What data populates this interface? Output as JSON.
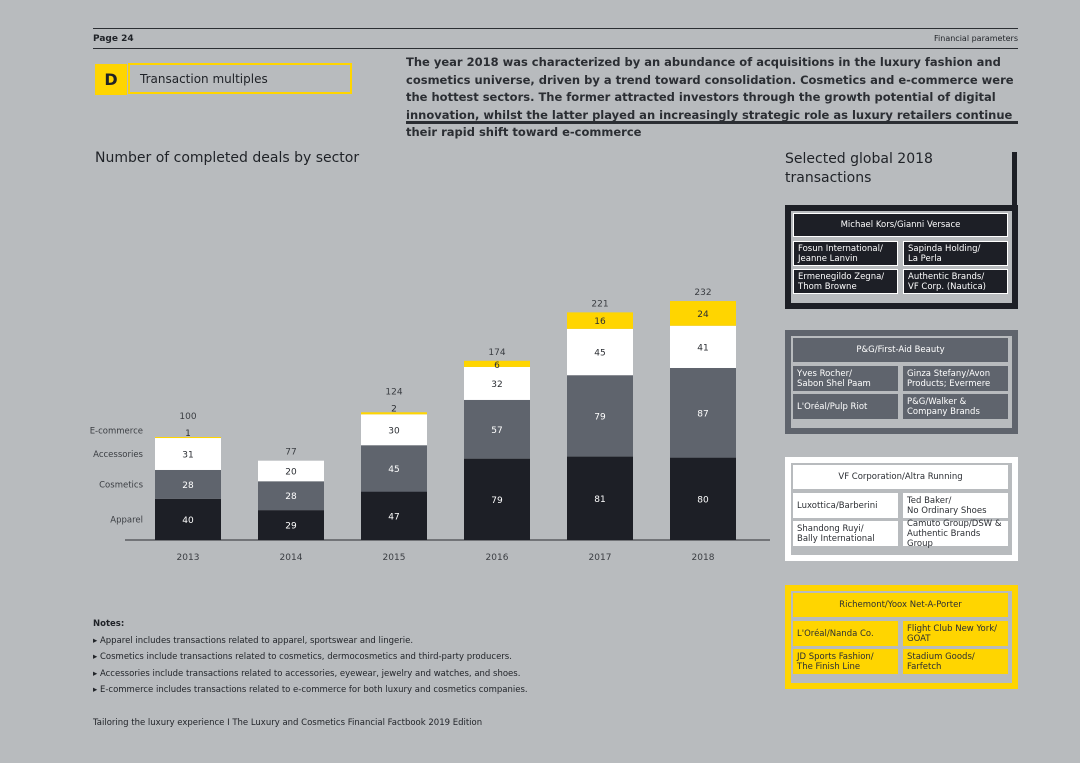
{
  "header": {
    "page": "Page 24",
    "section": "Financial parameters"
  },
  "section_tag": {
    "letter": "D",
    "label": "Transaction multiples"
  },
  "intro": "The year 2018 was characterized by an abundance of acquisitions in the luxury fashion and cosmetics universe, driven by a trend toward consolidation. Cosmetics and e-commerce were the hottest sectors. The former attracted investors through the growth potential of digital innovation, whilst the latter played an increasingly strategic role as luxury retailers continue their rapid shift toward e-commerce",
  "chart_title": "Number of completed deals by sector",
  "chart_data": {
    "type": "bar",
    "stacked": true,
    "title": "Number of completed deals by sector",
    "categories": [
      "2013",
      "2014",
      "2015",
      "2016",
      "2017",
      "2018"
    ],
    "series": [
      {
        "name": "Apparel",
        "values": [
          40,
          29,
          47,
          79,
          81,
          80
        ],
        "color": "#1d1f26",
        "label_color": "#ffffff"
      },
      {
        "name": "Cosmetics",
        "values": [
          28,
          28,
          45,
          57,
          79,
          87
        ],
        "color": "#5f646d",
        "label_color": "#ffffff"
      },
      {
        "name": "Accessories",
        "values": [
          31,
          20,
          30,
          32,
          45,
          41
        ],
        "color": "#ffffff",
        "label_color": "#2b2e33"
      },
      {
        "name": "E-commerce",
        "values": [
          1,
          0,
          2,
          6,
          16,
          24
        ],
        "color": "#ffd500",
        "label_color": "#2b2e33"
      }
    ],
    "totals": [
      100,
      77,
      124,
      174,
      221,
      232
    ],
    "ylim": [
      0,
      250
    ],
    "grid": false,
    "legend": "left-inline"
  },
  "transactions_title": "Selected global 2018 transactions",
  "groups": [
    {
      "theme": "dark",
      "header": "Michael Kors/Gianni Versace",
      "rows": [
        [
          "Fosun International/\nJeanne Lanvin",
          "Sapinda Holding/\nLa Perla"
        ],
        [
          "Ermenegildo Zegna/\nThom Browne",
          "Authentic Brands/\nVF Corp. (Nautica)"
        ]
      ]
    },
    {
      "theme": "grey",
      "header": "P&G/First-Aid Beauty",
      "rows": [
        [
          "Yves Rocher/\nSabon Shel Paam",
          "Ginza Stefany/Avon\nProducts; Evermere"
        ],
        [
          "L'Oréal/Pulp Riot",
          "P&G/Walker &\nCompany Brands"
        ]
      ]
    },
    {
      "theme": "white",
      "header": "VF Corporation/Altra Running",
      "rows": [
        [
          "Luxottica/Barberini",
          "Ted Baker/\nNo Ordinary Shoes"
        ],
        [
          "Shandong Ruyi/\nBally International",
          "Camuto Group/DSW &\nAuthentic Brands Group"
        ]
      ]
    },
    {
      "theme": "yellow",
      "header": "Richemont/Yoox Net-A-Porter",
      "rows": [
        [
          "L'Oréal/Nanda Co.",
          "Flight Club New York/\nGOAT"
        ],
        [
          "JD Sports Fashion/\nThe Finish Line",
          "Stadium Goods/\nFarfetch"
        ]
      ]
    }
  ],
  "notes": {
    "title": "Notes:",
    "items": [
      "Apparel includes transactions related to apparel, sportswear and lingerie.",
      "Cosmetics include transactions related to cosmetics, dermocosmetics and third-party producers.",
      "Accessories include transactions related to accessories, eyewear, jewelry and watches, and shoes.",
      "E-commerce includes transactions related to e-commerce for both luxury and cosmetics companies."
    ]
  },
  "footer": "Tailoring the luxury experience I The Luxury and Cosmetics Financial Factbook 2019 Edition"
}
